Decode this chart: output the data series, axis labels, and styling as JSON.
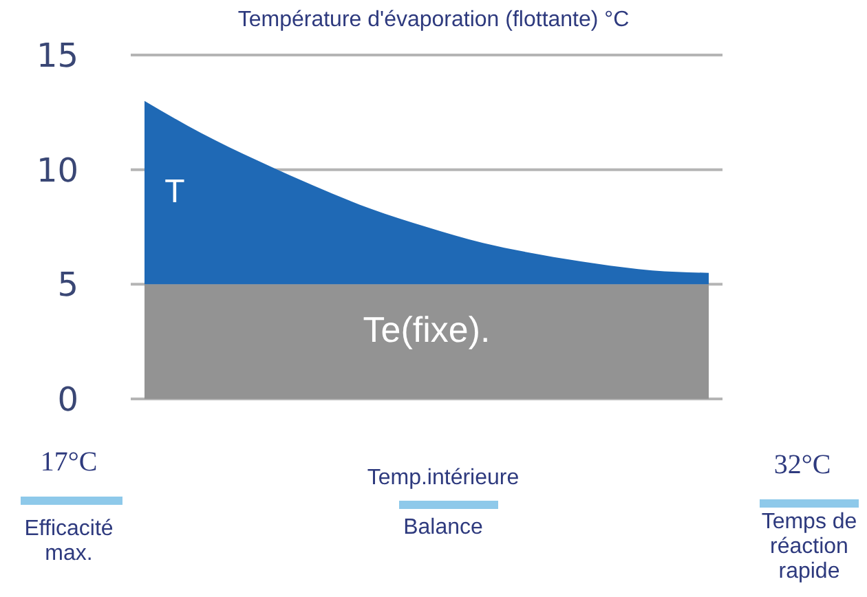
{
  "chart_data": {
    "type": "area",
    "title": "Température d'évaporation (flottante) °C",
    "xlabel": "Temp.intérieure",
    "annotations": [
      "17°C",
      "Efficacité max.",
      "Balance",
      "32°C",
      "Temps de réaction rapide"
    ],
    "categories": [
      null,
      null,
      null,
      null,
      null,
      null,
      null,
      null,
      null,
      null,
      null
    ],
    "stacked": true,
    "series": [
      {
        "name": "Te(fixe).",
        "color": "#939393",
        "values": [
          5,
          5,
          5,
          5,
          5,
          5,
          5,
          5,
          5,
          5,
          5
        ]
      },
      {
        "name": "T",
        "color": "#1f69b5",
        "values": [
          8,
          6.6,
          5.4,
          4.3,
          3.3,
          2.5,
          1.8,
          1.3,
          0.9,
          0.6,
          0.5
        ]
      }
    ],
    "ylim": [
      0,
      15
    ],
    "yticks": [
      0,
      5,
      10,
      15
    ],
    "grid": "y",
    "legend": false,
    "marker": "none"
  }
}
